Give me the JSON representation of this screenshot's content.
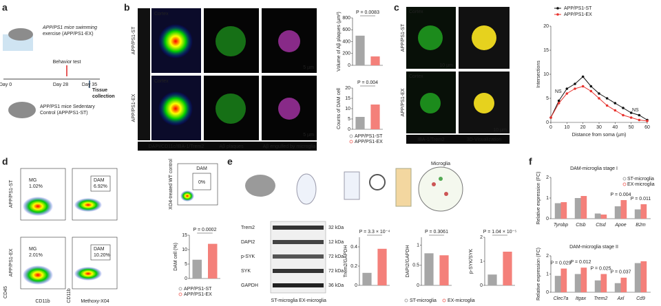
{
  "figure": {
    "a": {
      "label": "a",
      "exercise": [
        "APP/PS1 mice swimming",
        "exercise (APP/PS1-EX)"
      ],
      "behavior": "Behavior test",
      "days": [
        "Day 0",
        "Day 28",
        "Day 35"
      ],
      "tissue": [
        "Tissue",
        "collection"
      ],
      "sedentary": [
        "APP/PS1 mice Sedentary",
        "Control (APP/PS1-ST)"
      ]
    },
    "b": {
      "label": "b",
      "regions": [
        "Cortex",
        "Cortex"
      ],
      "groups": [
        "APP/PS1-ST",
        "APP/PS1-EX"
      ],
      "scales": [
        "5 µm",
        "5 µm"
      ],
      "channels": [
        "DAPI/CD11c/IBA-1/Trem2",
        "Aβ plaques",
        "Aβ engulfed by microglia"
      ]
    },
    "c": {
      "label": "c",
      "regions": [
        "Cortex",
        "Cortex"
      ],
      "groups": [
        "APP/PS1-ST",
        "APP/PS1-EX"
      ],
      "scales": [
        "10 µm",
        "10 µm"
      ],
      "channels": [
        "IBA-1/Trem2",
        "3D-Visualization"
      ]
    },
    "d": {
      "label": "d",
      "groups": [
        "APP/PS1-ST",
        "APP/PS1-EX"
      ],
      "gates": [
        {
          "name": "MG",
          "pct": "1.02%"
        },
        {
          "name": "DAM",
          "pct": "6.92%"
        },
        {
          "name": "MG",
          "pct": "2.01%"
        },
        {
          "name": "DAM",
          "pct": "10.20%"
        }
      ],
      "control": "XO4-treated WT control",
      "control_gate": {
        "name": "DAM",
        "pct": "0%"
      },
      "axes": [
        "CD45",
        "CD11b",
        "CD11b",
        "Methoxy-X04"
      ]
    },
    "e": {
      "label": "e",
      "microglia": "Microglia",
      "blots": [
        "Trem2",
        "DAPI2",
        "p-SYK",
        "SYK",
        "GAPDH"
      ],
      "sizes": [
        "32 kDa",
        "12 kDa",
        "72 kDa",
        "72 kDa",
        "36 kDa"
      ],
      "lanes": [
        "ST-microglia",
        "EX-microglia"
      ]
    },
    "f": {
      "label": "f"
    }
  },
  "chart_data": [
    {
      "type": "bar",
      "ylabel": "Volume of Aβ plaques (µm³)",
      "p": "P = 0.0083",
      "categories": [
        null,
        null
      ],
      "values": [
        500,
        150
      ],
      "colors": [
        "#a6a6a6",
        "#f4807a"
      ],
      "ylim": [
        0,
        800
      ],
      "yticks": [
        0,
        200,
        400,
        600,
        800
      ]
    },
    {
      "type": "bar",
      "ylabel": "Counts of DAM cell",
      "p": "P = 0.004",
      "categories": [
        null,
        null
      ],
      "values": [
        6,
        12
      ],
      "colors": [
        "#a6a6a6",
        "#f4807a"
      ],
      "ylim": [
        0,
        20
      ],
      "yticks": [
        0,
        5,
        10,
        15,
        20
      ],
      "legend": [
        "APP/PS1-ST",
        "APP/PS1-EX"
      ]
    },
    {
      "type": "line",
      "xlabel": "Distance from soma (µm)",
      "ylabel": "Intersections",
      "x": [
        0,
        5,
        10,
        15,
        20,
        25,
        30,
        35,
        40,
        45,
        50,
        55,
        60
      ],
      "series": [
        {
          "name": "APP/PS1-ST",
          "color": "#111111",
          "values": [
            1,
            4.5,
            7,
            8,
            9.5,
            7.5,
            6,
            5,
            4,
            3,
            2,
            1.5,
            0.5
          ]
        },
        {
          "name": "APP/PS1-EX",
          "color": "#e8332e",
          "values": [
            1,
            4,
            6,
            7,
            7.5,
            6.5,
            5,
            3.5,
            2.5,
            1.5,
            1,
            0.5,
            0.3
          ]
        }
      ],
      "annotations": [
        "NS",
        "NS"
      ],
      "xlim": [
        0,
        60
      ],
      "xticks": [
        0,
        10,
        20,
        30,
        40,
        50,
        60
      ],
      "ylim": [
        0,
        20
      ],
      "yticks": [
        0,
        5,
        10,
        15,
        20
      ]
    },
    {
      "type": "bar",
      "ylabel": "DAM cell (%)",
      "p": "P = 0.0002",
      "categories": [
        null,
        null
      ],
      "values": [
        6.5,
        12
      ],
      "colors": [
        "#a6a6a6",
        "#f4807a"
      ],
      "ylim": [
        0,
        15
      ],
      "yticks": [
        0,
        5,
        10,
        15
      ],
      "legend": [
        "APP/PS1-ST",
        "APP/PS1-EX"
      ]
    },
    {
      "type": "bar",
      "ylabel": "Trem2/GAPDH",
      "p": "P = 3.3 × 10⁻⁴",
      "categories": [
        null,
        null
      ],
      "values": [
        0.13,
        0.38
      ],
      "colors": [
        "#a6a6a6",
        "#f4807a"
      ],
      "ylim": [
        0,
        0.5
      ],
      "yticks": [
        0,
        0.2,
        0.4
      ]
    },
    {
      "type": "bar",
      "ylabel": "DAPI2/GAPDH",
      "p": "P = 0.3061",
      "categories": [
        null,
        null
      ],
      "values": [
        0.8,
        0.75
      ],
      "colors": [
        "#a6a6a6",
        "#f4807a"
      ],
      "ylim": [
        0,
        1.2
      ],
      "yticks": [
        0,
        0.5,
        1
      ],
      "legend": [
        "ST-microglia",
        "EX-microglia"
      ]
    },
    {
      "type": "bar",
      "ylabel": "p-SYK/SYK",
      "p": "P = 1.04 × 10⁻⁵",
      "categories": [
        null,
        null
      ],
      "values": [
        0.45,
        1.4
      ],
      "colors": [
        "#a6a6a6",
        "#f4807a"
      ],
      "ylim": [
        0,
        2
      ],
      "yticks": [
        0,
        1,
        2
      ]
    },
    {
      "type": "grouped",
      "title": "DAM-microglia stage I",
      "ylabel": "Relative expression (FC)",
      "categories": [
        "Tyrobp",
        "Ctsb",
        "Ctsd",
        "Apoe",
        "B2m"
      ],
      "series": [
        {
          "name": "ST-microglia",
          "color": "#a6a6a6",
          "values": [
            0.75,
            1.0,
            0.25,
            0.6,
            0.45
          ]
        },
        {
          "name": "EX-microglia",
          "color": "#f4807a",
          "values": [
            0.8,
            1.1,
            0.2,
            0.9,
            0.7
          ]
        }
      ],
      "p_values": [
        null,
        null,
        null,
        "P = 0.004",
        "P = 0.011"
      ],
      "ylim": [
        0,
        2
      ],
      "yticks": [
        0,
        1,
        2
      ]
    },
    {
      "type": "grouped",
      "title": "DAM-microglia stage II",
      "ylabel": "Relative expression (FC)",
      "categories": [
        "Clec7a",
        "Itgax",
        "Trem2",
        "Axl",
        "Cd9"
      ],
      "series": [
        {
          "color": "#a6a6a6",
          "values": [
            0.9,
            1.0,
            0.65,
            0.5,
            1.6
          ]
        },
        {
          "color": "#f4807a",
          "values": [
            1.3,
            1.35,
            1.0,
            0.8,
            1.7
          ]
        }
      ],
      "p_values": [
        "P = 0.029",
        "P = 0.012",
        "P = 0.025",
        "P = 0.037",
        null
      ],
      "ylim": [
        0,
        2
      ],
      "yticks": [
        0,
        1,
        2
      ]
    }
  ]
}
